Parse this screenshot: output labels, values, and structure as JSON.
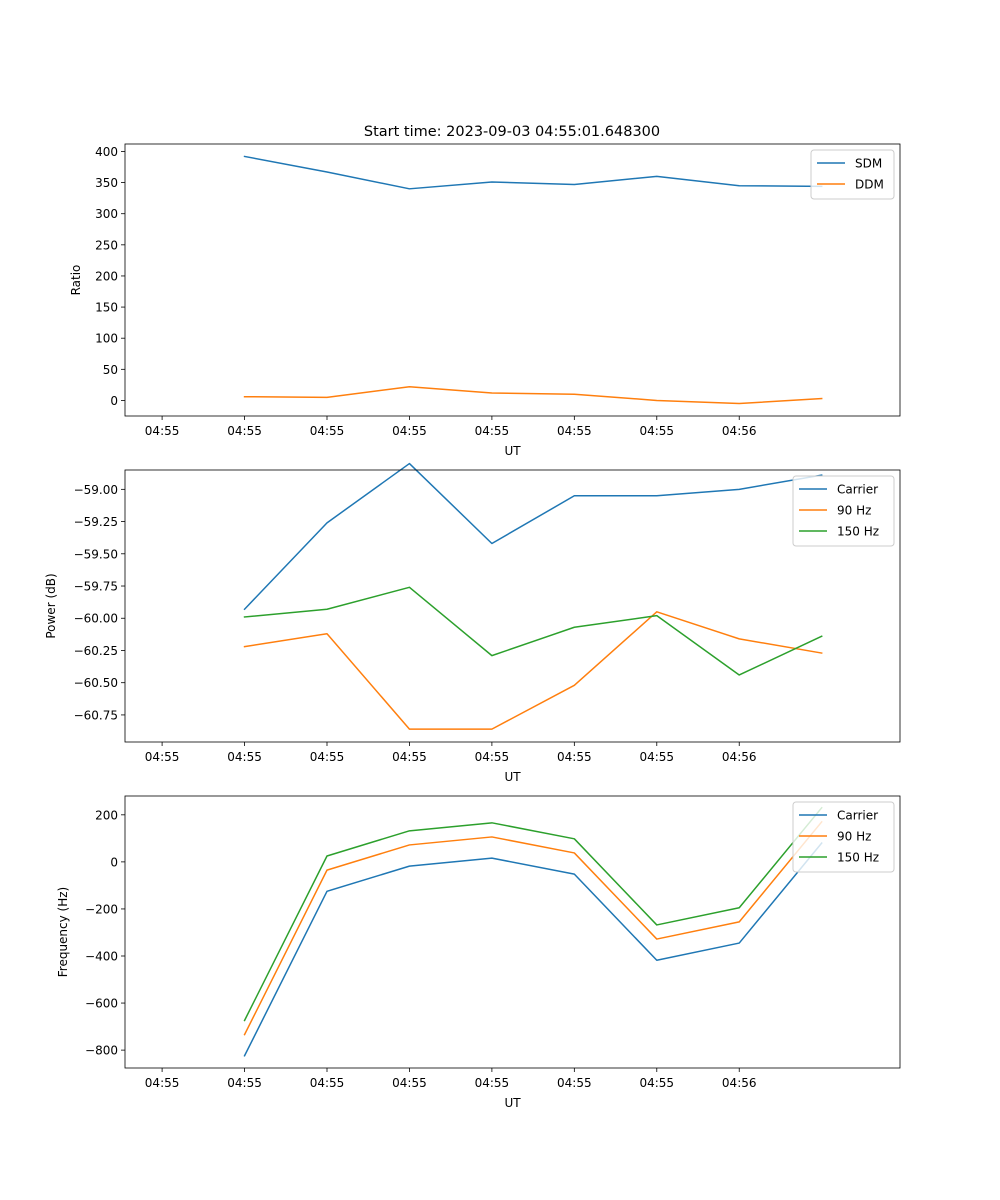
{
  "figure": {
    "title": "Start time: 2023-09-03 04:55:01.648300"
  },
  "chart_data": [
    {
      "type": "line",
      "title": "Start time: 2023-09-03 04:55:01.648300",
      "xlabel": "UT",
      "ylabel": "Ratio",
      "x_tick_labels": [
        "04:55",
        "04:55",
        "04:55",
        "04:55",
        "04:55",
        "04:55",
        "04:55",
        "04:56"
      ],
      "y_ticks": [
        0,
        50,
        100,
        150,
        200,
        250,
        300,
        350,
        400
      ],
      "ylim": [
        -25,
        412
      ],
      "xlim": [
        -0.95,
        8.45
      ],
      "x": [
        0.5,
        1.5,
        2.5,
        3.5,
        4.5,
        5.5,
        6.5,
        7.5
      ],
      "legend": "upper right",
      "series": [
        {
          "name": "SDM",
          "color": "#1f77b4",
          "values": [
            392,
            367,
            340,
            351,
            347,
            360,
            345,
            344
          ]
        },
        {
          "name": "DDM",
          "color": "#ff7f0e",
          "values": [
            6,
            5,
            22,
            12,
            10,
            0,
            -5,
            3
          ]
        }
      ]
    },
    {
      "type": "line",
      "title": "",
      "xlabel": "UT",
      "ylabel": "Power (dB)",
      "x_tick_labels": [
        "04:55",
        "04:55",
        "04:55",
        "04:55",
        "04:55",
        "04:55",
        "04:55",
        "04:56"
      ],
      "y_ticks": [
        -60.75,
        -60.5,
        -60.25,
        -60.0,
        -59.75,
        -59.5,
        -59.25,
        -59.0
      ],
      "y_tick_labels": [
        "−60.75",
        "−60.50",
        "−60.25",
        "−60.00",
        "−59.75",
        "−59.50",
        "−59.25",
        "−59.00"
      ],
      "ylim": [
        -60.96,
        -58.85
      ],
      "xlim": [
        -0.95,
        8.45
      ],
      "x": [
        0.5,
        1.5,
        2.5,
        3.5,
        4.5,
        5.5,
        6.5,
        7.5
      ],
      "legend": "upper right",
      "series": [
        {
          "name": "Carrier",
          "color": "#1f77b4",
          "values": [
            -59.93,
            -59.26,
            -58.8,
            -59.42,
            -59.05,
            -59.05,
            -59.0,
            -58.89
          ]
        },
        {
          "name": "90 Hz",
          "color": "#ff7f0e",
          "values": [
            -60.22,
            -60.12,
            -60.86,
            -60.86,
            -60.52,
            -59.95,
            -60.16,
            -60.27
          ]
        },
        {
          "name": "150 Hz",
          "color": "#2ca02c",
          "values": [
            -59.99,
            -59.93,
            -59.76,
            -60.29,
            -60.07,
            -59.98,
            -60.44,
            -60.14
          ]
        }
      ]
    },
    {
      "type": "line",
      "title": "",
      "xlabel": "UT",
      "ylabel": "Frequency (Hz)",
      "x_tick_labels": [
        "04:55",
        "04:55",
        "04:55",
        "04:55",
        "04:55",
        "04:55",
        "04:55",
        "04:56"
      ],
      "y_ticks": [
        -800,
        -600,
        -400,
        -200,
        0,
        200
      ],
      "y_tick_labels": [
        "−800",
        "−600",
        "−400",
        "−200",
        "0",
        "200"
      ],
      "ylim": [
        -876,
        280
      ],
      "xlim": [
        -0.95,
        8.45
      ],
      "x": [
        0.5,
        1.5,
        2.5,
        3.5,
        4.5,
        5.5,
        6.5,
        7.5
      ],
      "legend": "upper right",
      "series": [
        {
          "name": "Carrier",
          "color": "#1f77b4",
          "values": [
            -824,
            -125,
            -18,
            16,
            -52,
            -418,
            -345,
            80
          ]
        },
        {
          "name": "90 Hz",
          "color": "#ff7f0e",
          "values": [
            -734,
            -35,
            72,
            106,
            38,
            -328,
            -255,
            170
          ]
        },
        {
          "name": "150 Hz",
          "color": "#2ca02c",
          "values": [
            -674,
            25,
            132,
            166,
            98,
            -268,
            -195,
            230
          ]
        }
      ]
    }
  ]
}
